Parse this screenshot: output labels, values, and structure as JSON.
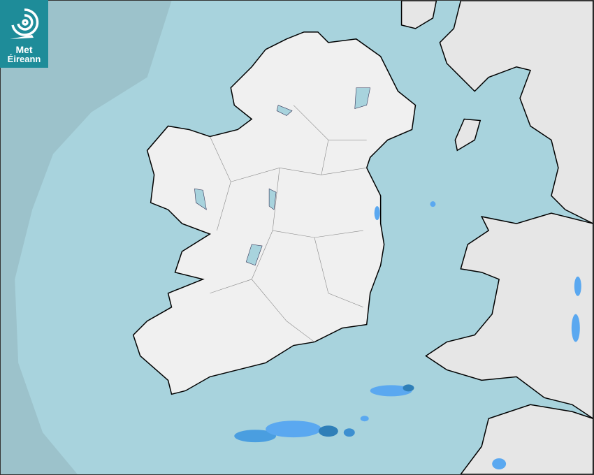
{
  "logo": {
    "line1": "Met",
    "line2": "Éireann"
  },
  "colors": {
    "sea_outside_radar": "#9cc2cb",
    "sea_radar_coverage": "#a8d3dd",
    "land": "#f2f2f2",
    "rain_light": "#5aa8f0",
    "rain_moderate": "#2f7fb8"
  }
}
